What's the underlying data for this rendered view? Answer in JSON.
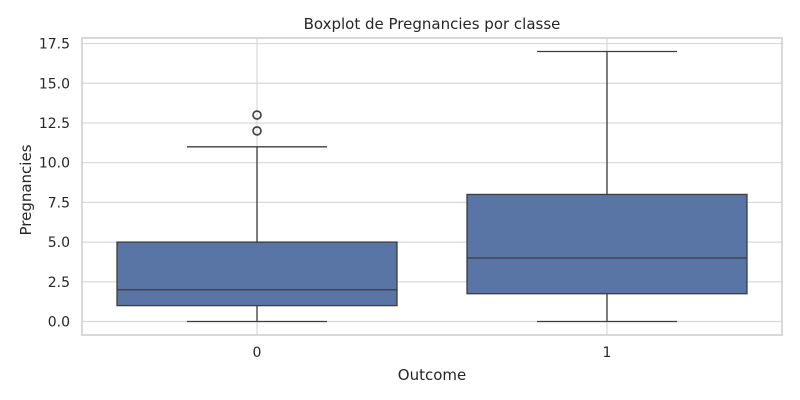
{
  "chart_data": {
    "type": "boxplot",
    "title": "Boxplot de Pregnancies por classe",
    "xlabel": "Outcome",
    "ylabel": "Pregnancies",
    "categories": [
      "0",
      "1"
    ],
    "ylim": [
      -0.85,
      17.85
    ],
    "yticks": [
      0.0,
      2.5,
      5.0,
      7.5,
      10.0,
      12.5,
      15.0,
      17.5
    ],
    "ytick_labels": [
      "0.0",
      "2.5",
      "5.0",
      "7.5",
      "10.0",
      "12.5",
      "15.0",
      "17.5"
    ],
    "grid": true,
    "colors": {
      "box": "#5875a6",
      "line": "#3d3d3d",
      "grid": "#d9d9d9",
      "frame": "#cccccc",
      "background": "#ffffff"
    },
    "boxes": [
      {
        "category": "0",
        "whisker_low": 0,
        "q1": 1,
        "median": 2,
        "q3": 5,
        "whisker_high": 11,
        "outliers": [
          12,
          13
        ]
      },
      {
        "category": "1",
        "whisker_low": 0,
        "q1": 1.75,
        "median": 4,
        "q3": 8,
        "whisker_high": 17,
        "outliers": []
      }
    ]
  }
}
